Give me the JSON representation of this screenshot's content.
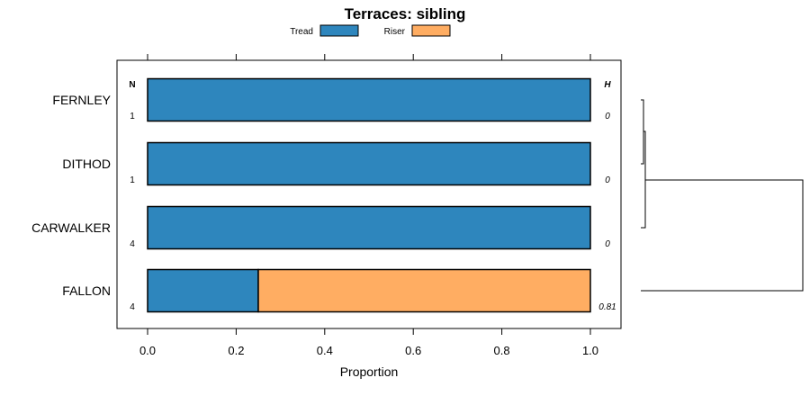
{
  "chart_data": {
    "type": "bar",
    "orientation": "horizontal",
    "stacked": true,
    "title": "Terraces: sibling",
    "xlabel": "Proportion",
    "ylabel": "",
    "xlim": [
      -0.07,
      1.07
    ],
    "xticks": [
      "0.0",
      "0.2",
      "0.4",
      "0.6",
      "0.8",
      "1.0"
    ],
    "xtick_values": [
      0,
      0.2,
      0.4,
      0.6,
      0.8,
      1.0
    ],
    "categories": [
      "FERNLEY",
      "DITHOD",
      "CARWALKER",
      "FALLON"
    ],
    "series": [
      {
        "name": "Tread",
        "color": "#2E86BD",
        "values": [
          1,
          1,
          1,
          0.25
        ]
      },
      {
        "name": "Riser",
        "color": "#FFAD62",
        "values": [
          0,
          0,
          0,
          0.75
        ]
      }
    ],
    "legend_position": "top",
    "n_header": "N",
    "n_values": [
      "1",
      "1",
      "4",
      "4"
    ],
    "h_header": "H",
    "h_values": [
      "0",
      "0",
      "0",
      "0.81"
    ],
    "dendrogram": {
      "merges": [
        [
          "FERNLEY",
          "DITHOD",
          0.01
        ],
        [
          "FERNLEY+DITHOD",
          "CARWALKER",
          0.02
        ],
        [
          "FERNLEY+DITHOD+CARWALKER",
          "FALLON",
          1.0
        ]
      ]
    }
  }
}
